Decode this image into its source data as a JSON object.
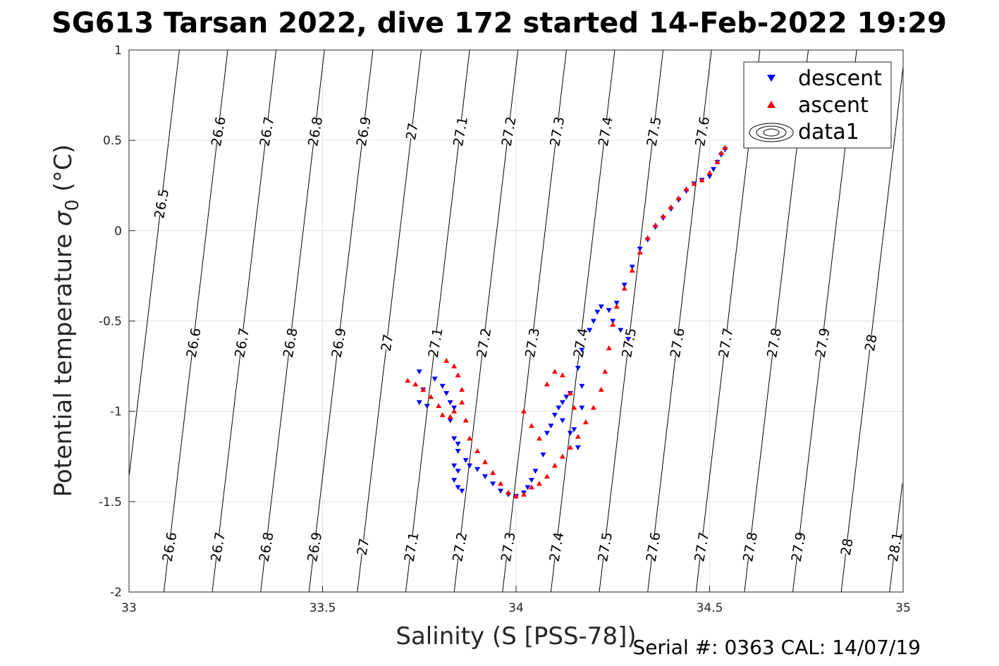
{
  "chart_data": {
    "type": "scatter",
    "title": "SG613 Tarsan 2022, dive 172 started 14-Feb-2022 19:29",
    "xlabel": "Salinity (S [PSS-78])",
    "ylabel_main": "Potential temperature ",
    "ylabel_sym": "σ",
    "ylabel_sub": "0",
    "ylabel_unit": " (°C)",
    "xlim": [
      33,
      35
    ],
    "ylim": [
      -2,
      1
    ],
    "x_ticks": [
      "33",
      "33.5",
      "34",
      "34.5",
      "35"
    ],
    "y_ticks": [
      "1",
      "0.5",
      "0",
      "-0.5",
      "-1",
      "-1.5",
      "-2"
    ],
    "grid": true,
    "legend_position": "top-right",
    "contour_levels": [
      "26.5",
      "26.6",
      "26.7",
      "26.8",
      "26.9",
      "27",
      "27.1",
      "27.2",
      "27.3",
      "27.4",
      "27.5",
      "27.6",
      "27.7",
      "27.8",
      "27.9",
      "28",
      "28.1"
    ],
    "contour_labels_row1": [
      "26.6",
      "26.7",
      "26.8",
      "26.9",
      "27",
      "27.1",
      "27.2",
      "27.3",
      "27.4",
      "27.5",
      "27.6",
      "27.7"
    ],
    "contour_labels_row2": [
      "26.6",
      "26.7",
      "26.8",
      "26.9",
      "27",
      "27.1",
      "27.2",
      "27.3",
      "27.4",
      "27.5",
      "27.6",
      "27.7",
      "27.8",
      "27.9",
      "28",
      "28.1"
    ],
    "contour_labels_row3": [
      "26.6",
      "26.7",
      "26.8",
      "26.9",
      "27",
      "27.1",
      "27.2",
      "27.3",
      "27.4",
      "27.5",
      "27.6",
      "27.7",
      "27.8",
      "27.9",
      "28",
      "28.1"
    ],
    "series": [
      {
        "name": "descent",
        "color": "#0000ff",
        "marker": "triangle-down",
        "points": [
          [
            33.75,
            -0.78
          ],
          [
            33.76,
            -0.88
          ],
          [
            33.75,
            -0.95
          ],
          [
            33.77,
            -0.97
          ],
          [
            33.79,
            -0.82
          ],
          [
            33.81,
            -0.86
          ],
          [
            33.82,
            -0.9
          ],
          [
            33.83,
            -0.95
          ],
          [
            33.84,
            -0.98
          ],
          [
            33.83,
            -1.05
          ],
          [
            33.84,
            -1.15
          ],
          [
            33.85,
            -1.18
          ],
          [
            33.85,
            -1.22
          ],
          [
            33.84,
            -1.3
          ],
          [
            33.85,
            -1.33
          ],
          [
            33.84,
            -1.38
          ],
          [
            33.85,
            -1.42
          ],
          [
            33.86,
            -1.44
          ],
          [
            33.87,
            -1.27
          ],
          [
            33.88,
            -1.3
          ],
          [
            33.9,
            -1.32
          ],
          [
            33.92,
            -1.36
          ],
          [
            33.94,
            -1.4
          ],
          [
            33.96,
            -1.44
          ],
          [
            33.98,
            -1.46
          ],
          [
            34.0,
            -1.47
          ],
          [
            34.02,
            -1.45
          ],
          [
            34.03,
            -1.42
          ],
          [
            34.04,
            -1.38
          ],
          [
            34.05,
            -1.33
          ],
          [
            34.07,
            -1.24
          ],
          [
            34.08,
            -1.12
          ],
          [
            34.09,
            -1.08
          ],
          [
            34.1,
            -1.02
          ],
          [
            34.11,
            -0.98
          ],
          [
            34.12,
            -0.95
          ],
          [
            34.13,
            -0.92
          ],
          [
            34.14,
            -0.9
          ],
          [
            34.12,
            -1.05
          ],
          [
            34.14,
            -1.12
          ],
          [
            34.16,
            -1.2
          ],
          [
            34.15,
            -1.1
          ],
          [
            34.17,
            -0.98
          ],
          [
            34.17,
            -0.86
          ],
          [
            34.16,
            -0.76
          ],
          [
            34.17,
            -0.66
          ],
          [
            34.19,
            -0.55
          ],
          [
            34.2,
            -0.5
          ],
          [
            34.21,
            -0.45
          ],
          [
            34.22,
            -0.42
          ],
          [
            34.24,
            -0.44
          ],
          [
            34.25,
            -0.5
          ],
          [
            34.27,
            -0.55
          ],
          [
            34.29,
            -0.6
          ],
          [
            34.26,
            -0.4
          ],
          [
            34.28,
            -0.3
          ],
          [
            34.3,
            -0.2
          ],
          [
            34.32,
            -0.1
          ],
          [
            34.34,
            -0.05
          ],
          [
            34.36,
            0.02
          ],
          [
            34.38,
            0.07
          ],
          [
            34.4,
            0.12
          ],
          [
            34.42,
            0.17
          ],
          [
            34.44,
            0.22
          ],
          [
            34.46,
            0.26
          ],
          [
            34.48,
            0.28
          ],
          [
            34.5,
            0.3
          ],
          [
            34.51,
            0.34
          ],
          [
            34.52,
            0.38
          ],
          [
            34.53,
            0.42
          ],
          [
            34.54,
            0.45
          ]
        ]
      },
      {
        "name": "ascent",
        "color": "#ff0000",
        "marker": "triangle-up",
        "points": [
          [
            33.72,
            -0.83
          ],
          [
            33.74,
            -0.85
          ],
          [
            33.76,
            -0.88
          ],
          [
            33.78,
            -0.92
          ],
          [
            33.8,
            -0.97
          ],
          [
            33.81,
            -1.02
          ],
          [
            33.83,
            -1.03
          ],
          [
            33.84,
            -1.0
          ],
          [
            33.82,
            -0.72
          ],
          [
            33.84,
            -0.75
          ],
          [
            33.85,
            -0.8
          ],
          [
            33.86,
            -0.88
          ],
          [
            33.86,
            -0.95
          ],
          [
            33.87,
            -1.05
          ],
          [
            33.88,
            -1.15
          ],
          [
            33.9,
            -1.22
          ],
          [
            33.92,
            -1.28
          ],
          [
            33.94,
            -1.34
          ],
          [
            33.96,
            -1.4
          ],
          [
            33.98,
            -1.45
          ],
          [
            34.0,
            -1.47
          ],
          [
            34.02,
            -1.46
          ],
          [
            34.04,
            -1.42
          ],
          [
            34.06,
            -1.4
          ],
          [
            34.08,
            -1.36
          ],
          [
            34.1,
            -1.3
          ],
          [
            34.12,
            -1.25
          ],
          [
            34.14,
            -1.2
          ],
          [
            34.16,
            -1.14
          ],
          [
            34.18,
            -1.06
          ],
          [
            34.2,
            -0.98
          ],
          [
            34.22,
            -0.88
          ],
          [
            34.23,
            -0.78
          ],
          [
            34.24,
            -0.65
          ],
          [
            34.25,
            -0.52
          ],
          [
            34.26,
            -0.42
          ],
          [
            34.28,
            -0.32
          ],
          [
            34.3,
            -0.22
          ],
          [
            34.32,
            -0.12
          ],
          [
            34.34,
            -0.04
          ],
          [
            34.36,
            0.03
          ],
          [
            34.38,
            0.08
          ],
          [
            34.4,
            0.13
          ],
          [
            34.42,
            0.18
          ],
          [
            34.44,
            0.23
          ],
          [
            34.46,
            0.26
          ],
          [
            34.48,
            0.28
          ],
          [
            34.5,
            0.32
          ],
          [
            34.52,
            0.38
          ],
          [
            34.53,
            0.43
          ],
          [
            34.54,
            0.46
          ],
          [
            34.02,
            -1.0
          ],
          [
            34.04,
            -1.08
          ],
          [
            34.06,
            -1.15
          ],
          [
            34.08,
            -0.85
          ],
          [
            34.1,
            -0.78
          ],
          [
            34.12,
            -0.8
          ],
          [
            34.14,
            -0.9
          ],
          [
            34.15,
            -0.98
          ]
        ]
      }
    ]
  },
  "legend": {
    "descent_label": "descent",
    "ascent_label": "ascent",
    "data1_label": "data1"
  },
  "footer": "Serial #: 0363  CAL: 14/07/19"
}
